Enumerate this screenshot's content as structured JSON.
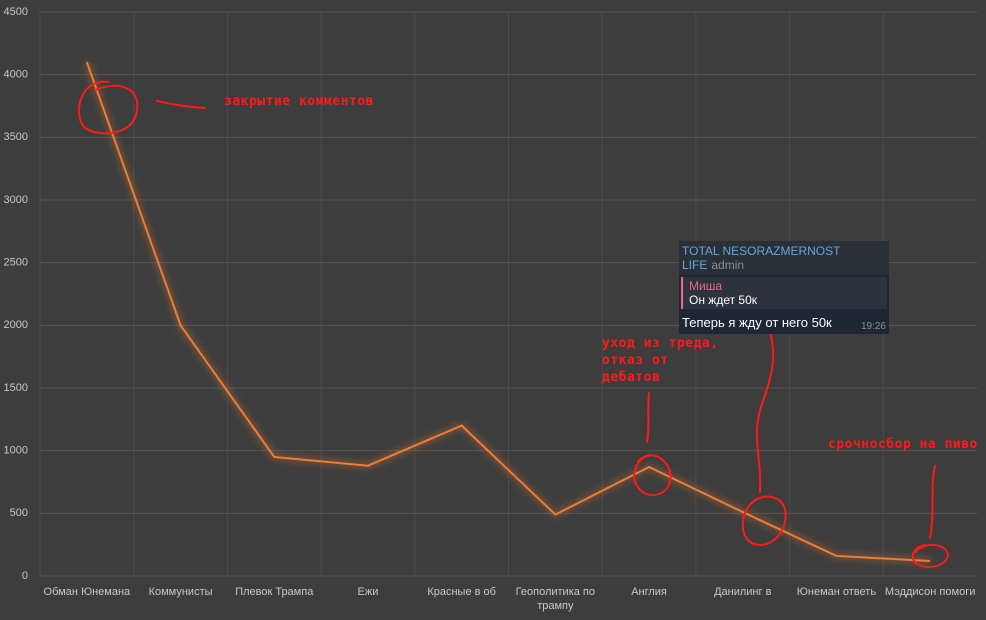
{
  "chart_data": {
    "type": "line",
    "categories": [
      "Обман Юнемана",
      "Коммунисты",
      "Плевок Трампа",
      "Ежи",
      "Красные в об",
      "Геополитика по трампу",
      "Англия",
      "Данилинг в",
      "Юнеман ответь",
      "Мэддисон помоги"
    ],
    "values": [
      4100,
      2000,
      950,
      880,
      1200,
      490,
      870,
      510,
      160,
      120
    ],
    "color": "#ed7d31",
    "ylim": [
      0,
      4500
    ],
    "yticks": [
      0,
      500,
      1000,
      1500,
      2000,
      2500,
      3000,
      3500,
      4000,
      4500
    ],
    "grid": true,
    "annotations": [
      "закрытие комментов",
      "уход из треда, отказ от дебатов",
      "срочносбор на пиво"
    ]
  },
  "message": {
    "channel": "TOTAL NESORAZMERNOST LIFE",
    "role": "admin",
    "reply_author": "Миша",
    "reply_text": "Он ждет 50к",
    "text": "Теперь я жду от него 50к",
    "time": "19:26"
  }
}
